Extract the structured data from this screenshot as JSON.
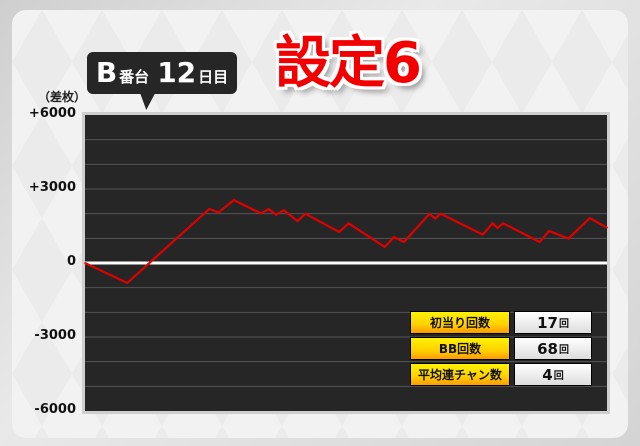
{
  "header": {
    "machine": "B",
    "machine_suffix": "番台",
    "day": "12",
    "day_suffix": "日目",
    "setting_title": "設定6"
  },
  "chart_data": {
    "type": "line",
    "ylabel": "（差枚）",
    "ylim": [
      -6000,
      6000
    ],
    "xlim": [
      0,
      100
    ],
    "yticks": [
      6000,
      3000,
      0,
      -3000,
      -6000
    ],
    "ytick_labels": [
      "+6000",
      "+3000",
      "0",
      "-3000",
      "-6000"
    ],
    "grid": true,
    "line_color": "#e00000",
    "zero_line_color": "#ffffff",
    "background": "#262626",
    "x": [
      0,
      8.1,
      23.8,
      25.6,
      28.5,
      33.7,
      35.2,
      36.6,
      38.1,
      40.7,
      42.2,
      48.7,
      50.5,
      57.4,
      59.2,
      61.1,
      66.0,
      67.1,
      68.1,
      76.2,
      78.1,
      79.0,
      80.1,
      87.1,
      88.9,
      92.6,
      96.7,
      100
    ],
    "y": [
      0,
      -810,
      2190,
      2050,
      2550,
      2010,
      2180,
      1960,
      2140,
      1700,
      2000,
      1260,
      1610,
      650,
      1050,
      850,
      1990,
      1800,
      2000,
      1150,
      1610,
      1420,
      1610,
      850,
      1300,
      990,
      1820,
      1430
    ]
  },
  "stats": [
    {
      "label": "初当り回数",
      "value": "17",
      "unit": "回"
    },
    {
      "label": "BB回数",
      "value": "68",
      "unit": "回"
    },
    {
      "label": "平均連チャン数",
      "value": "4",
      "unit": "回"
    }
  ]
}
